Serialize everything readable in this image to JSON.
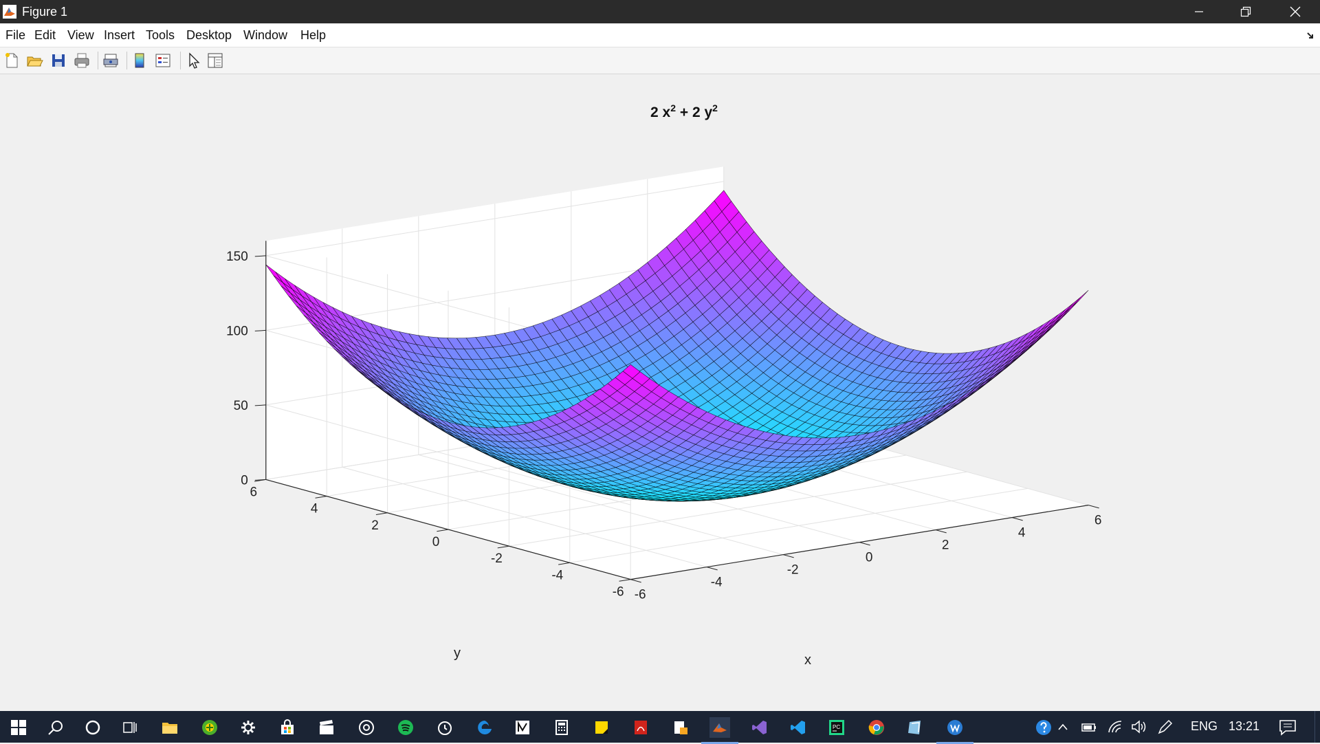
{
  "window": {
    "title": "Figure 1"
  },
  "menu": {
    "items": [
      "File",
      "Edit",
      "View",
      "Insert",
      "Tools",
      "Desktop",
      "Window",
      "Help"
    ]
  },
  "toolbar": {
    "icons": [
      "new-figure-icon",
      "open-file-icon",
      "save-icon",
      "print-icon",
      "print-preview-icon",
      "colorbar-icon",
      "legend-icon",
      "edit-plot-icon",
      "property-inspector-icon"
    ]
  },
  "chart_data": {
    "type": "surface",
    "title_parts": [
      "2 x",
      "2",
      " + 2 y",
      "2"
    ],
    "function": "z = 2*x^2 + 2*y^2",
    "xlabel": "x",
    "ylabel": "y",
    "xlim": [
      -6,
      6
    ],
    "ylim": [
      -6,
      6
    ],
    "zlim": [
      0,
      160
    ],
    "x_ticks": [
      "-6",
      "-4",
      "-2",
      "0",
      "2",
      "4",
      "6"
    ],
    "y_ticks": [
      "-6",
      "-4",
      "-2",
      "0",
      "2",
      "4",
      "6"
    ],
    "z_ticks": [
      "0",
      "50",
      "100",
      "150"
    ],
    "grid": "on",
    "colormap": "cool",
    "colors": {
      "low": "#00ffff",
      "high": "#ff00ff",
      "edge": "#000000"
    }
  },
  "taskbar": {
    "apps": [
      "windows-start-icon",
      "search-icon",
      "cortana-icon",
      "task-view-icon",
      "file-explorer-icon",
      "green-app-icon",
      "settings-icon",
      "store-icon",
      "video-editor-icon",
      "media-icon",
      "spotify-icon",
      "alarm-clock-icon",
      "edge-icon",
      "notepad-icon",
      "calculator-icon",
      "sticky-notes-icon",
      "acrobat-icon",
      "docs-icon",
      "matlab-icon",
      "visual-studio-icon",
      "vscode-icon",
      "pycharm-icon",
      "chrome-icon",
      "files-icon",
      "word-icon"
    ],
    "language": "ENG",
    "time": "13:21"
  }
}
